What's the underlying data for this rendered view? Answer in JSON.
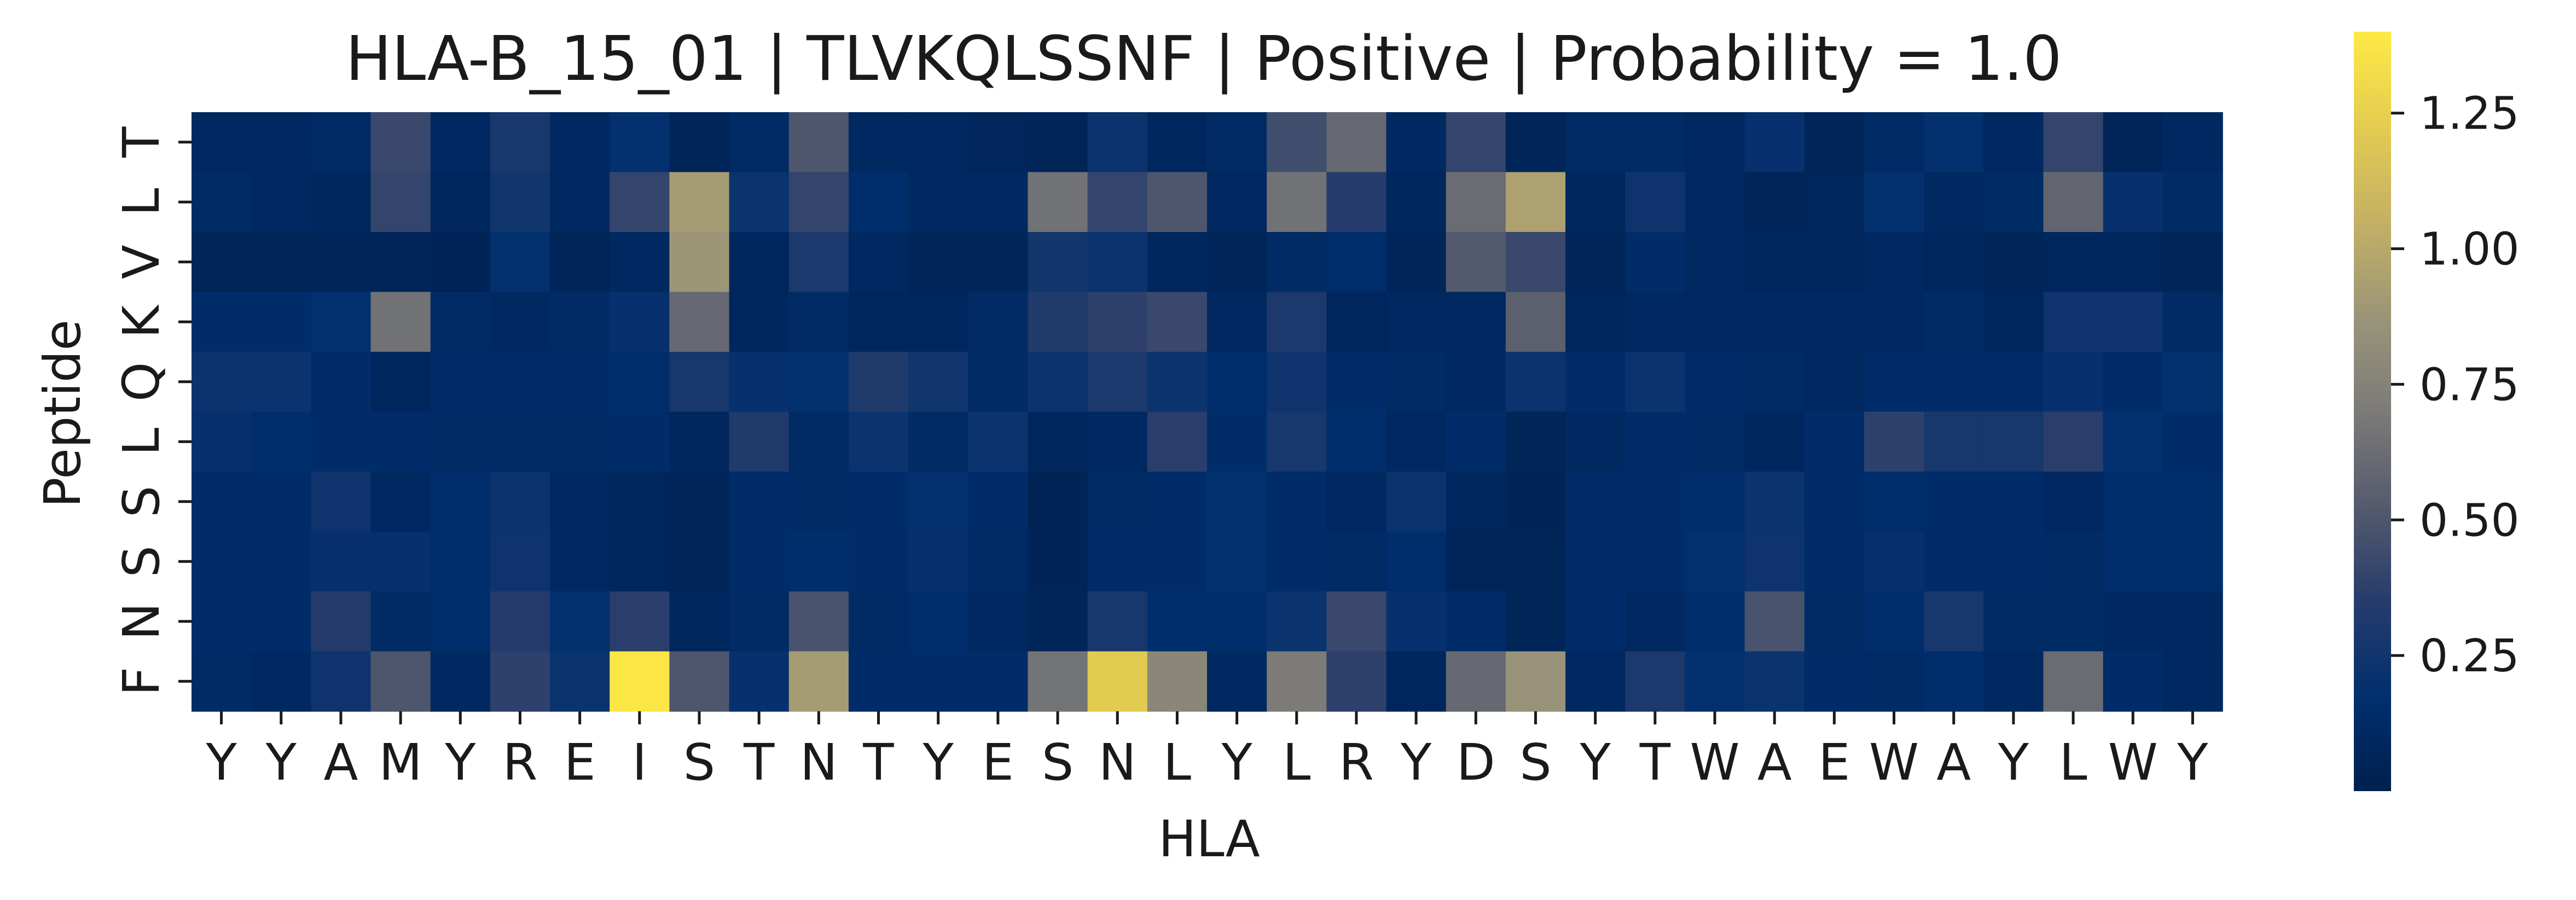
{
  "chart_data": {
    "type": "heatmap",
    "title": "HLA-B_15_01 | TLVKQLSSNF | Positive | Probability = 1.0",
    "xlabel": "HLA",
    "ylabel": "Peptide",
    "x_categories": [
      "Y",
      "Y",
      "A",
      "M",
      "Y",
      "R",
      "E",
      "I",
      "S",
      "T",
      "N",
      "T",
      "Y",
      "E",
      "S",
      "N",
      "L",
      "Y",
      "L",
      "R",
      "Y",
      "D",
      "S",
      "Y",
      "T",
      "W",
      "A",
      "E",
      "W",
      "A",
      "Y",
      "L",
      "W",
      "Y"
    ],
    "y_categories": [
      "T",
      "L",
      "V",
      "K",
      "Q",
      "L",
      "S",
      "S",
      "N",
      "F"
    ],
    "values": [
      [
        0.1,
        0.1,
        0.12,
        0.42,
        0.1,
        0.28,
        0.1,
        0.18,
        0.06,
        0.12,
        0.5,
        0.1,
        0.1,
        0.07,
        0.06,
        0.22,
        0.08,
        0.12,
        0.45,
        0.6,
        0.1,
        0.4,
        0.06,
        0.12,
        0.12,
        0.1,
        0.2,
        0.06,
        0.12,
        0.18,
        0.1,
        0.4,
        0.06,
        0.1
      ],
      [
        0.12,
        0.1,
        0.08,
        0.4,
        0.08,
        0.25,
        0.1,
        0.4,
        0.92,
        0.22,
        0.4,
        0.16,
        0.1,
        0.1,
        0.65,
        0.4,
        0.5,
        0.1,
        0.65,
        0.34,
        0.08,
        0.62,
        0.95,
        0.08,
        0.24,
        0.1,
        0.06,
        0.08,
        0.18,
        0.1,
        0.12,
        0.58,
        0.2,
        0.12
      ],
      [
        0.06,
        0.06,
        0.06,
        0.06,
        0.05,
        0.18,
        0.06,
        0.1,
        0.88,
        0.08,
        0.3,
        0.1,
        0.06,
        0.06,
        0.26,
        0.22,
        0.08,
        0.06,
        0.12,
        0.16,
        0.06,
        0.52,
        0.42,
        0.06,
        0.14,
        0.1,
        0.08,
        0.08,
        0.1,
        0.08,
        0.06,
        0.08,
        0.08,
        0.06
      ],
      [
        0.15,
        0.15,
        0.18,
        0.65,
        0.12,
        0.1,
        0.12,
        0.2,
        0.6,
        0.08,
        0.12,
        0.08,
        0.08,
        0.12,
        0.32,
        0.38,
        0.42,
        0.1,
        0.3,
        0.08,
        0.1,
        0.1,
        0.55,
        0.08,
        0.1,
        0.1,
        0.1,
        0.1,
        0.1,
        0.12,
        0.08,
        0.24,
        0.24,
        0.12
      ],
      [
        0.22,
        0.22,
        0.14,
        0.08,
        0.14,
        0.14,
        0.14,
        0.16,
        0.28,
        0.2,
        0.18,
        0.32,
        0.25,
        0.12,
        0.22,
        0.3,
        0.22,
        0.16,
        0.24,
        0.14,
        0.12,
        0.1,
        0.22,
        0.14,
        0.22,
        0.14,
        0.12,
        0.1,
        0.14,
        0.14,
        0.14,
        0.2,
        0.14,
        0.18
      ],
      [
        0.2,
        0.16,
        0.14,
        0.14,
        0.12,
        0.12,
        0.12,
        0.14,
        0.08,
        0.32,
        0.12,
        0.22,
        0.12,
        0.22,
        0.08,
        0.1,
        0.36,
        0.14,
        0.28,
        0.16,
        0.1,
        0.14,
        0.06,
        0.1,
        0.14,
        0.12,
        0.08,
        0.14,
        0.38,
        0.28,
        0.28,
        0.36,
        0.18,
        0.14
      ],
      [
        0.14,
        0.14,
        0.24,
        0.1,
        0.16,
        0.22,
        0.1,
        0.08,
        0.06,
        0.14,
        0.12,
        0.14,
        0.18,
        0.14,
        0.04,
        0.12,
        0.14,
        0.18,
        0.14,
        0.1,
        0.22,
        0.08,
        0.05,
        0.14,
        0.14,
        0.16,
        0.22,
        0.14,
        0.16,
        0.14,
        0.14,
        0.1,
        0.16,
        0.16
      ],
      [
        0.14,
        0.14,
        0.2,
        0.2,
        0.16,
        0.24,
        0.1,
        0.08,
        0.06,
        0.14,
        0.16,
        0.14,
        0.2,
        0.12,
        0.05,
        0.14,
        0.14,
        0.18,
        0.14,
        0.12,
        0.16,
        0.06,
        0.06,
        0.14,
        0.14,
        0.18,
        0.24,
        0.14,
        0.2,
        0.14,
        0.14,
        0.12,
        0.16,
        0.16
      ],
      [
        0.14,
        0.14,
        0.34,
        0.12,
        0.16,
        0.34,
        0.18,
        0.36,
        0.08,
        0.12,
        0.48,
        0.12,
        0.16,
        0.1,
        0.06,
        0.28,
        0.16,
        0.16,
        0.22,
        0.42,
        0.2,
        0.14,
        0.06,
        0.14,
        0.1,
        0.16,
        0.48,
        0.12,
        0.16,
        0.28,
        0.12,
        0.12,
        0.1,
        0.1
      ],
      [
        0.12,
        0.1,
        0.24,
        0.5,
        0.1,
        0.38,
        0.22,
        1.38,
        0.5,
        0.2,
        0.92,
        0.14,
        0.14,
        0.14,
        0.66,
        1.22,
        0.78,
        0.1,
        0.7,
        0.38,
        0.08,
        0.6,
        0.86,
        0.1,
        0.3,
        0.18,
        0.22,
        0.14,
        0.12,
        0.16,
        0.1,
        0.62,
        0.14,
        0.1
      ]
    ],
    "colormap": "cividis",
    "vmin": 0.0,
    "vmax": 1.4,
    "colorbar_ticks": [
      0.25,
      0.5,
      0.75,
      1.0,
      1.25
    ],
    "colorbar_tick_labels": [
      "0.25",
      "0.50",
      "0.75",
      "1.00",
      "1.25"
    ],
    "grid": false,
    "colorbar_position": "right"
  }
}
